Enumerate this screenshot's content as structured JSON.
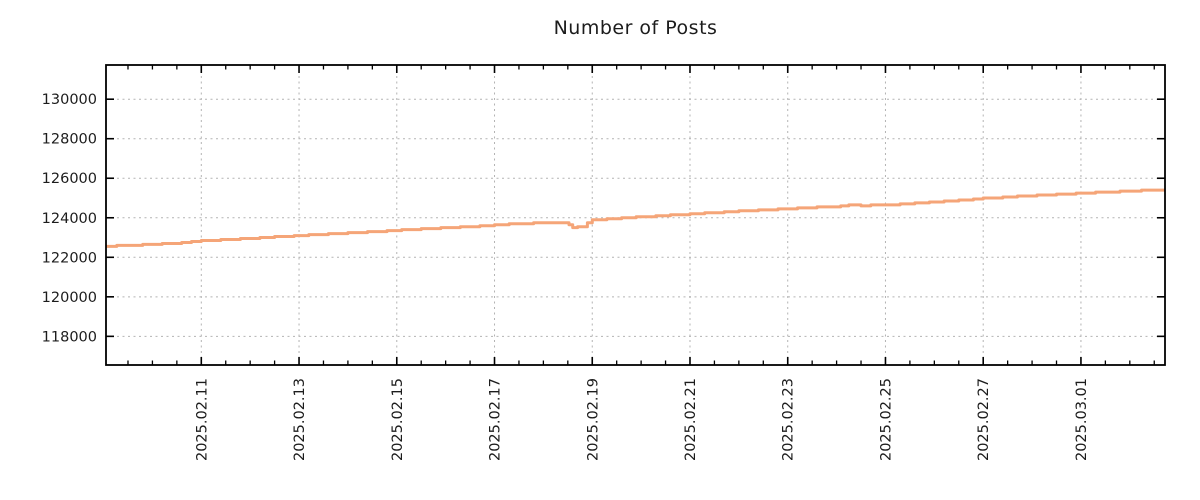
{
  "chart_data": {
    "type": "line",
    "title": "Number of Posts",
    "xlabel": "",
    "ylabel": "",
    "legend": "none",
    "grid": "dotted",
    "axis_color": "#000000",
    "grid_color": "#b3b3b3",
    "xlim_day_units": [
      9.05,
      30.72
    ],
    "ylim": [
      116550,
      131730
    ],
    "y_ticks": [
      {
        "value": 118000,
        "label": "118000"
      },
      {
        "value": 120000,
        "label": "120000"
      },
      {
        "value": 122000,
        "label": "122000"
      },
      {
        "value": 124000,
        "label": "124000"
      },
      {
        "value": 126000,
        "label": "126000"
      },
      {
        "value": 128000,
        "label": "128000"
      },
      {
        "value": 130000,
        "label": "130000"
      }
    ],
    "x_ticks": [
      {
        "t": 11,
        "label": "2025.02.11"
      },
      {
        "t": 13,
        "label": "2025.02.13"
      },
      {
        "t": 15,
        "label": "2025.02.15"
      },
      {
        "t": 17,
        "label": "2025.02.17"
      },
      {
        "t": 19,
        "label": "2025.02.19"
      },
      {
        "t": 21,
        "label": "2025.02.21"
      },
      {
        "t": 23,
        "label": "2025.02.23"
      },
      {
        "t": 25,
        "label": "2025.02.25"
      },
      {
        "t": 27,
        "label": "2025.02.27"
      },
      {
        "t": 29,
        "label": "2025.03.01"
      }
    ],
    "x_minor_tick_step": 0.5,
    "series": [
      {
        "name": "posts",
        "color": "#f5a578",
        "line_width": 3,
        "points": [
          [
            9.05,
            122560
          ],
          [
            9.6,
            122600
          ],
          [
            10.0,
            122660
          ],
          [
            10.5,
            122720
          ],
          [
            11.0,
            122830
          ],
          [
            11.3,
            122870
          ],
          [
            11.6,
            122910
          ],
          [
            12.0,
            122960
          ],
          [
            12.4,
            123010
          ],
          [
            12.7,
            123060
          ],
          [
            13.0,
            123100
          ],
          [
            13.4,
            123160
          ],
          [
            13.8,
            123210
          ],
          [
            14.2,
            123260
          ],
          [
            14.6,
            123310
          ],
          [
            15.0,
            123360
          ],
          [
            15.4,
            123420
          ],
          [
            15.8,
            123470
          ],
          [
            16.2,
            123520
          ],
          [
            16.6,
            123560
          ],
          [
            17.0,
            123630
          ],
          [
            17.4,
            123690
          ],
          [
            17.8,
            123730
          ],
          [
            18.3,
            123770
          ],
          [
            18.45,
            123760
          ],
          [
            18.6,
            123520
          ],
          [
            18.8,
            123560
          ],
          [
            19.0,
            123890
          ],
          [
            19.3,
            123940
          ],
          [
            19.6,
            123980
          ],
          [
            20.0,
            124040
          ],
          [
            20.5,
            124110
          ],
          [
            21.0,
            124190
          ],
          [
            21.5,
            124260
          ],
          [
            22.0,
            124330
          ],
          [
            22.5,
            124390
          ],
          [
            23.0,
            124460
          ],
          [
            23.5,
            124520
          ],
          [
            24.0,
            124560
          ],
          [
            24.25,
            124650
          ],
          [
            24.5,
            124620
          ],
          [
            25.0,
            124640
          ],
          [
            25.5,
            124720
          ],
          [
            26.0,
            124800
          ],
          [
            26.5,
            124880
          ],
          [
            27.0,
            124980
          ],
          [
            27.5,
            125050
          ],
          [
            28.0,
            125120
          ],
          [
            28.5,
            125180
          ],
          [
            29.0,
            125240
          ],
          [
            29.5,
            125300
          ],
          [
            30.0,
            125360
          ],
          [
            30.72,
            125420
          ]
        ]
      }
    ]
  }
}
